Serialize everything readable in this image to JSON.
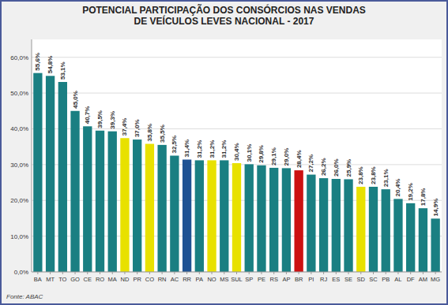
{
  "chart_data": {
    "type": "bar",
    "title": "POTENCIAL PARTICIPAÇÃO DOS CONSÓRCIOS NAS VENDAS\nDE VEÍCULOS LEVES NACIONAL  - 2017",
    "annotations": [
      "Fonte: ABAC"
    ],
    "categories": [
      "BA",
      "MT",
      "TO",
      "GO",
      "CE",
      "RO",
      "MA",
      "ND",
      "PR",
      "CO",
      "RN",
      "AC",
      "RR",
      "PA",
      "NO",
      "MS",
      "SUL",
      "SP",
      "PE",
      "RS",
      "AP",
      "BR",
      "PI",
      "RJ",
      "ES",
      "SE",
      "SD",
      "SC",
      "PB",
      "AL",
      "DF",
      "AM",
      "MG"
    ],
    "values": [
      55.6,
      54.8,
      53.1,
      45.0,
      40.7,
      39.5,
      39.3,
      37.4,
      37.0,
      35.8,
      35.5,
      32.5,
      31.4,
      31.2,
      31.2,
      31.2,
      30.4,
      30.1,
      29.8,
      29.1,
      29.0,
      28.4,
      27.2,
      26.2,
      26.0,
      25.9,
      23.8,
      23.8,
      23.1,
      20.4,
      19.2,
      17.8,
      14.9
    ],
    "value_labels": [
      "55,6%",
      "54,8%",
      "53,1%",
      "45,0%",
      "40,7%",
      "39,5%",
      "39,3%",
      "37,4%",
      "37,0%",
      "35,8%",
      "35,5%",
      "32,5%",
      "31,4%",
      "31,2%",
      "31,2%",
      "31,2%",
      "30,4%",
      "30,1%",
      "29,8%",
      "29,1%",
      "29,0%",
      "28,4%",
      "27,2%",
      "26,2%",
      "26,0%",
      "25,9%",
      "23,8%",
      "23,8%",
      "23,1%",
      "20,4%",
      "19,2%",
      "17,8%",
      "14,9%"
    ],
    "colors": [
      "#1a7f82",
      "#1a7f82",
      "#1a7f82",
      "#1a7f82",
      "#1a7f82",
      "#1a7f82",
      "#1a7f82",
      "#e8e100",
      "#1a7f82",
      "#e8e100",
      "#1a7f82",
      "#1a7f82",
      "#1f5293",
      "#1a7f82",
      "#e8e100",
      "#1a7f82",
      "#e8e100",
      "#1a7f82",
      "#1a7f82",
      "#1a7f82",
      "#1a7f82",
      "#cc1111",
      "#1a7f82",
      "#1a7f82",
      "#1a7f82",
      "#1a7f82",
      "#e8e100",
      "#1a7f82",
      "#1a7f82",
      "#1a7f82",
      "#1a7f82",
      "#1a7f82",
      "#1a7f82"
    ],
    "ylim": [
      0,
      65
    ],
    "yticks": [
      {
        "value": 0.0,
        "label": "0,0%"
      },
      {
        "value": 10.0,
        "label": "10,0%"
      },
      {
        "value": 20.0,
        "label": "20,0%"
      },
      {
        "value": 30.0,
        "label": "30,0%"
      },
      {
        "value": 40.0,
        "label": "40,0%"
      },
      {
        "value": 50.0,
        "label": "50,0%"
      },
      {
        "value": 60.0,
        "label": "60,0%"
      }
    ],
    "grid": true,
    "data_labels": true
  }
}
